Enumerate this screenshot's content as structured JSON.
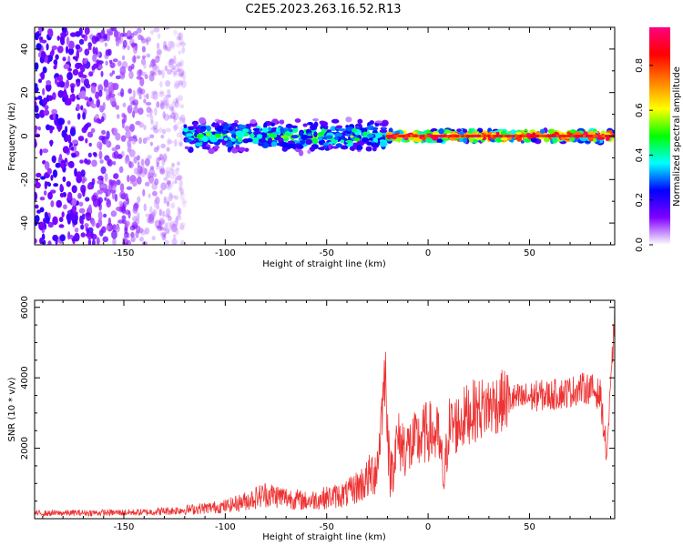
{
  "chart_data": [
    {
      "type": "heatmap",
      "title": "C2E5.2023.263.16.52.R13",
      "xlabel": "Height of straight line (km)",
      "ylabel": "Frequency (Hz)",
      "xlim": [
        -194,
        92
      ],
      "ylim": [
        -50,
        50
      ],
      "xticks": [
        -150,
        -100,
        -50,
        0,
        50
      ],
      "yticks": [
        -40,
        -20,
        0,
        20,
        40
      ],
      "grid": false,
      "colorbar": {
        "label": "Normalized spectral amplitude",
        "range": [
          0,
          0.97
        ],
        "ticks": [
          "0.0",
          "0.2",
          "0.4",
          "0.6",
          "0.8"
        ],
        "tick_values": [
          0,
          0.2,
          0.4,
          0.6,
          0.8
        ],
        "colors": [
          "#ffffff",
          "#8000ff",
          "#0000ff",
          "#00ffff",
          "#00ff00",
          "#ffff00",
          "#ff8000",
          "#ff0000",
          "#ff0080"
        ]
      },
      "regions": [
        {
          "x_range": [
            -194,
            -120
          ],
          "spread_hz": 50,
          "amplitude": 0.15,
          "desc": "broadband noise"
        },
        {
          "x_range": [
            -120,
            -20
          ],
          "center_hz": 0,
          "spread_hz": 8,
          "amplitude": 0.4
        },
        {
          "x_range": [
            -20,
            92
          ],
          "center_hz": 0,
          "spread_hz": 3,
          "amplitude": 0.9
        }
      ]
    },
    {
      "type": "line",
      "xlabel": "Height of straight line (km)",
      "ylabel": "SNR (10 * v/v)",
      "xlim": [
        -194,
        92
      ],
      "ylim": [
        0,
        6200
      ],
      "xticks": [
        -150,
        -100,
        -50,
        0,
        50
      ],
      "yticks": [
        2000,
        4000,
        6000
      ],
      "grid": false,
      "series": [
        {
          "color": "#ee3333",
          "x": [
            -194,
            -180,
            -160,
            -140,
            -120,
            -110,
            -100,
            -90,
            -80,
            -70,
            -60,
            -50,
            -40,
            -30,
            -25,
            -21,
            -19,
            -15,
            -10,
            -5,
            0,
            5,
            8,
            10,
            15,
            20,
            25,
            30,
            35,
            40,
            45,
            50,
            55,
            60,
            65,
            70,
            75,
            80,
            85,
            88,
            90,
            92
          ],
          "y": [
            150,
            160,
            170,
            180,
            250,
            300,
            350,
            500,
            700,
            600,
            500,
            600,
            700,
            1100,
            1500,
            4300,
            1200,
            2200,
            2000,
            2200,
            2500,
            2300,
            1000,
            2600,
            2700,
            3000,
            3100,
            3200,
            3300,
            3400,
            3400,
            3450,
            3500,
            3500,
            3550,
            3600,
            3700,
            3700,
            3500,
            1800,
            3600,
            5800
          ]
        }
      ]
    }
  ]
}
